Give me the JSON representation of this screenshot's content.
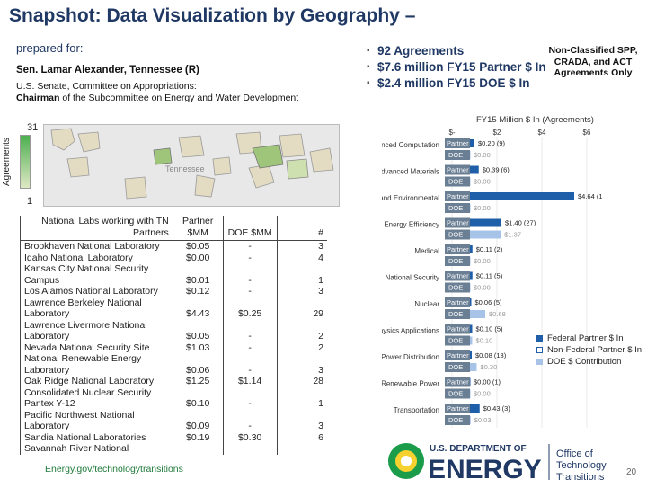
{
  "title": "Snapshot: Data Visualization by Geography –",
  "prepared_for": "prepared for:",
  "senator": "Sen. Lamar Alexander, Tennessee (R)",
  "committee_line1": "U.S. Senate, Committee on Appropriations:",
  "committee_chair": "Chairman",
  "committee_line2": " of the Subcommittee on Energy and Water Development",
  "bullets": [
    "92 Agreements",
    "$7.6 million FY15 Partner $ In",
    "$2.4 million FY15 DOE $ In"
  ],
  "non_classified": "Non-Classified SPP, CRADA, and ACT Agreements Only",
  "map": {
    "legend_title": "Agreements",
    "legend_max": "31",
    "legend_min": "1",
    "state_label": "Tennessee"
  },
  "table": {
    "headers": [
      "National Labs working with TN Partners",
      "Partner $MM",
      "DOE $MM",
      "#"
    ],
    "rows": [
      [
        "Brookhaven National Laboratory",
        "$0.05",
        "-",
        "3"
      ],
      [
        "Idaho National Laboratory",
        "$0.00",
        "-",
        "4"
      ],
      [
        "Kansas City National Security Campus",
        "$0.01",
        "-",
        "1"
      ],
      [
        "Los Alamos National Laboratory",
        "$0.12",
        "-",
        "3"
      ],
      [
        "Lawrence Berkeley National Laboratory",
        "$4.43",
        "$0.25",
        "29"
      ],
      [
        "Lawrence Livermore National Laboratory",
        "$0.05",
        "-",
        "2"
      ],
      [
        "Nevada National Security Site",
        "$1.03",
        "-",
        "2"
      ],
      [
        "National Renewable Energy Laboratory",
        "$0.06",
        "-",
        "3"
      ],
      [
        "Oak Ridge National Laboratory",
        "$1.25",
        "$1.14",
        "28"
      ],
      [
        "Consolidated Nuclear Security Pantex Y-12",
        "$0.10",
        "-",
        "1"
      ],
      [
        "Pacific Northwest National Laboratory",
        "$0.09",
        "-",
        "3"
      ],
      [
        "Sandia National Laboratories",
        "$0.19",
        "$0.30",
        "6"
      ],
      [
        "Savannah River National",
        "",
        "",
        ""
      ]
    ]
  },
  "chart_data": {
    "type": "bar",
    "title": "FY15 Million $ In (Agreements)",
    "xlim": [
      0,
      6
    ],
    "x_ticks": [
      "$-",
      "$2",
      "$4",
      "$6"
    ],
    "categories": [
      "Advanced Computation",
      "Advanced Materials",
      "Earth and Environmental",
      "Energy Efficiency",
      "Medical",
      "National Security",
      "Nuclear",
      "Physics Applications",
      "Power Distribution",
      "Renewable Power",
      "Transportation"
    ],
    "series": [
      {
        "name": "Federal Partner $ In",
        "label": "Partner",
        "values": [
          0.2,
          0.39,
          0,
          1.4,
          0.11,
          0.11,
          0.06,
          0.1,
          0.08,
          0.0,
          0.43
        ],
        "data_labels": [
          "$0.20 (9)",
          "$0.39 (6)",
          "",
          "$1.40 (27)",
          "$0.11 (2)",
          "$0.11 (5)",
          "$0.06 (5)",
          "$0.10 (5)",
          "$0.08 (13)",
          "$0.00 (1)",
          "$0.43 (3)"
        ]
      },
      {
        "name": "Non-Federal Partner $ In",
        "label": "Partner",
        "values": [
          0,
          0,
          4.64,
          0,
          0,
          0,
          0,
          0,
          0,
          0,
          0
        ],
        "data_labels": [
          "",
          "",
          "$4.64 (14)",
          "",
          "",
          "",
          "",
          "",
          "",
          "",
          ""
        ]
      },
      {
        "name": "DOE $ Contribution",
        "label": "DOE",
        "values": [
          0.0,
          0.0,
          0.0,
          1.37,
          0.0,
          0.0,
          0.68,
          0.1,
          0.3,
          0.0,
          0.03
        ],
        "data_labels": [
          "$0.00",
          "$0.00",
          "$0.00",
          "$1.37",
          "$0.00",
          "$0.00",
          "$0.68",
          "$0.10",
          "$0.30",
          "$0.00",
          "$0.03"
        ]
      }
    ],
    "legend": [
      "Federal Partner $ In",
      "Non-Federal Partner $ In",
      "DOE $ Contribution"
    ],
    "colors": {
      "federal": "#1f5ea8",
      "nonfederal": "#1f5ea8",
      "doe": "#a7c4e8",
      "label_bg": "#6b7f94"
    }
  },
  "footer_left": "Energy.gov/technologytransitions",
  "logo": {
    "dept": "U.S. DEPARTMENT OF",
    "energy": "ENERGY",
    "office": "Office of Technology Transitions"
  },
  "page_number": "20"
}
